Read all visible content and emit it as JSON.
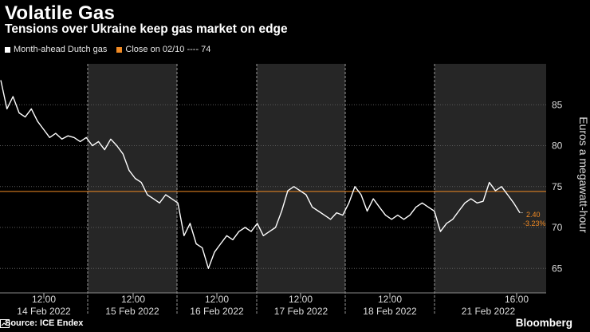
{
  "title": "Volatile Gas",
  "subtitle": "Tensions over Ukraine keep gas market on edge",
  "legend": {
    "series_label": "Month-ahead Dutch gas",
    "close_label": "Close on 02/10 ---- 74"
  },
  "footer": {
    "source": "Source: ICE Endex",
    "brand": "Bloomberg"
  },
  "colors": {
    "series": "#ffffff",
    "close": "#f08a24",
    "shade": "#262626",
    "background": "#000000"
  },
  "chart_data": {
    "type": "line",
    "ylabel": "Euros a megawatt-hour",
    "ylim": [
      62,
      90
    ],
    "yticks": [
      "85",
      "80",
      "75",
      "70",
      "65"
    ],
    "ytick_values": [
      85,
      80,
      75,
      70,
      65
    ],
    "reference_line": {
      "value": 74.4,
      "label": "Close on 02/10"
    },
    "days": [
      {
        "time_label": "12:00",
        "date_label": "14 Feb 2022",
        "shaded": false
      },
      {
        "time_label": "12:00",
        "date_label": "15 Feb 2022",
        "shaded": true
      },
      {
        "time_label": "12:00",
        "date_label": "16 Feb 2022",
        "shaded": false
      },
      {
        "time_label": "12:00",
        "date_label": "17 Feb 2022",
        "shaded": true
      },
      {
        "time_label": "12:00",
        "date_label": "18 Feb 2022",
        "shaded": false
      },
      {
        "time_label": "16:00",
        "date_label": "21 Feb 2022",
        "shaded": true
      }
    ],
    "last_change": "2.40",
    "last_change_pct": "-3.23%",
    "series": [
      {
        "name": "Month-ahead Dutch gas",
        "values": [
          88.0,
          84.5,
          86.0,
          84.0,
          83.5,
          84.5,
          83.0,
          82.0,
          81.0,
          81.5,
          80.8,
          81.2,
          81.0,
          80.5,
          81.0,
          80.0,
          80.5,
          79.5,
          80.8,
          80.0,
          79.0,
          77.0,
          76.0,
          75.5,
          74.0,
          73.5,
          73.0,
          74.0,
          73.5,
          73.0,
          69.0,
          70.5,
          68.0,
          67.5,
          65.0,
          67.0,
          68.0,
          69.0,
          68.5,
          69.5,
          70.0,
          69.5,
          70.5,
          69.0,
          69.5,
          70.0,
          72.0,
          74.5,
          75.0,
          74.5,
          74.0,
          72.5,
          72.0,
          71.5,
          71.0,
          71.8,
          71.5,
          73.0,
          75.0,
          74.0,
          72.0,
          73.5,
          72.5,
          71.5,
          71.0,
          71.5,
          71.0,
          71.5,
          72.5,
          73.0,
          72.5,
          72.0,
          69.5,
          70.5,
          71.0,
          72.0,
          73.0,
          73.5,
          73.0,
          73.2,
          75.5,
          74.5,
          75.0,
          74.0,
          73.0,
          71.8
        ]
      }
    ]
  }
}
